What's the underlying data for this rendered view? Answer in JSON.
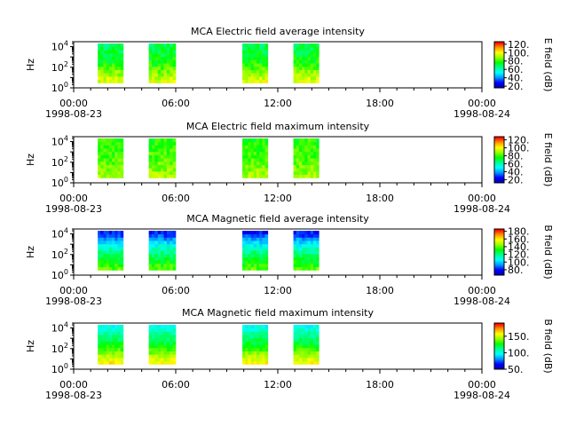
{
  "colors": {
    "colormap": [
      "#0000b4",
      "#0000ff",
      "#0096ff",
      "#00ffff",
      "#00ff96",
      "#00ff00",
      "#96ff00",
      "#ffff00",
      "#ff9600",
      "#ff0000"
    ],
    "axis": "#000000",
    "background": "#ffffff"
  },
  "chart_data": [
    {
      "type": "heatmap",
      "title": "MCA  Electric field average intensity",
      "ylabel": "Hz",
      "yscale": "log",
      "ylim": [
        1,
        30000
      ],
      "ytick_labels": [
        "10^0",
        "10^2",
        "10^4"
      ],
      "xlim": [
        "1998-08-23 00:00",
        "1998-08-24 00:00"
      ],
      "xtick_labels": [
        "00:00\n1998-08-23",
        "06:00",
        "12:00",
        "18:00",
        "00:00\n1998-08-24"
      ],
      "colorbar": {
        "label": "E field (dB)",
        "range": [
          16,
          126
        ],
        "tick_labels": [
          "20.",
          "40.",
          "60.",
          "80.",
          "100.",
          "120."
        ]
      },
      "data_intervals": [
        [
          "01:25",
          "02:55"
        ],
        [
          "04:25",
          "06:00"
        ],
        [
          "09:55",
          "11:25"
        ],
        [
          "12:55",
          "14:25"
        ]
      ],
      "freq_range_hz": [
        3,
        20000
      ],
      "intensity_profile_db": {
        "low_freq": 98,
        "mid_freq": 78,
        "high_freq": 70
      }
    },
    {
      "type": "heatmap",
      "title": "MCA  Electric field maximum intensity",
      "ylabel": "Hz",
      "yscale": "log",
      "ylim": [
        1,
        30000
      ],
      "ytick_labels": [
        "10^0",
        "10^2",
        "10^4"
      ],
      "xlim": [
        "1998-08-23 00:00",
        "1998-08-24 00:00"
      ],
      "xtick_labels": [
        "00:00\n1998-08-23",
        "06:00",
        "12:00",
        "18:00",
        "00:00\n1998-08-24"
      ],
      "colorbar": {
        "label": "E field (dB)",
        "range": [
          12,
          128
        ],
        "tick_labels": [
          "20.",
          "40.",
          "60.",
          "80.",
          "100.",
          "120."
        ]
      },
      "data_intervals": [
        [
          "01:25",
          "02:55"
        ],
        [
          "04:25",
          "06:00"
        ],
        [
          "09:55",
          "11:25"
        ],
        [
          "12:55",
          "14:25"
        ]
      ],
      "freq_range_hz": [
        3,
        20000
      ],
      "intensity_profile_db": {
        "low_freq": 92,
        "mid_freq": 82,
        "high_freq": 78
      }
    },
    {
      "type": "heatmap",
      "title": "MCA  Magnetic field average intensity",
      "ylabel": "Hz",
      "yscale": "log",
      "ylim": [
        1,
        30000
      ],
      "ytick_labels": [
        "10^0",
        "10^2",
        "10^4"
      ],
      "xlim": [
        "1998-08-23 00:00",
        "1998-08-24 00:00"
      ],
      "xtick_labels": [
        "00:00\n1998-08-23",
        "06:00",
        "12:00",
        "18:00",
        "00:00\n1998-08-24"
      ],
      "colorbar": {
        "label": "B field (dB)",
        "range": [
          66,
          186
        ],
        "tick_labels": [
          "80.",
          "100.",
          "120.",
          "140.",
          "160.",
          "180."
        ]
      },
      "data_intervals": [
        [
          "01:25",
          "02:55"
        ],
        [
          "04:25",
          "06:00"
        ],
        [
          "09:55",
          "11:25"
        ],
        [
          "12:55",
          "14:25"
        ]
      ],
      "freq_range_hz": [
        3,
        20000
      ],
      "intensity_profile_db": {
        "low_freq": 140,
        "mid_freq": 118,
        "high_freq": 80
      }
    },
    {
      "type": "heatmap",
      "title": "MCA  Magnetic field maximum intensity",
      "ylabel": "Hz",
      "yscale": "log",
      "ylim": [
        1,
        30000
      ],
      "ytick_labels": [
        "10^0",
        "10^2",
        "10^4"
      ],
      "xlim": [
        "1998-08-23 00:00",
        "1998-08-24 00:00"
      ],
      "xtick_labels": [
        "00:00\n1998-08-23",
        "06:00",
        "12:00",
        "18:00",
        "00:00\n1998-08-24"
      ],
      "colorbar": {
        "label": "B field (dB)",
        "range": [
          50,
          190
        ],
        "tick_labels": [
          "50.",
          "100.",
          "150."
        ]
      },
      "data_intervals": [
        [
          "01:25",
          "02:55"
        ],
        [
          "04:25",
          "06:00"
        ],
        [
          "09:55",
          "11:25"
        ],
        [
          "12:55",
          "14:25"
        ]
      ],
      "freq_range_hz": [
        3,
        20000
      ],
      "intensity_profile_db": {
        "low_freq": 160,
        "mid_freq": 125,
        "high_freq": 100
      }
    }
  ]
}
